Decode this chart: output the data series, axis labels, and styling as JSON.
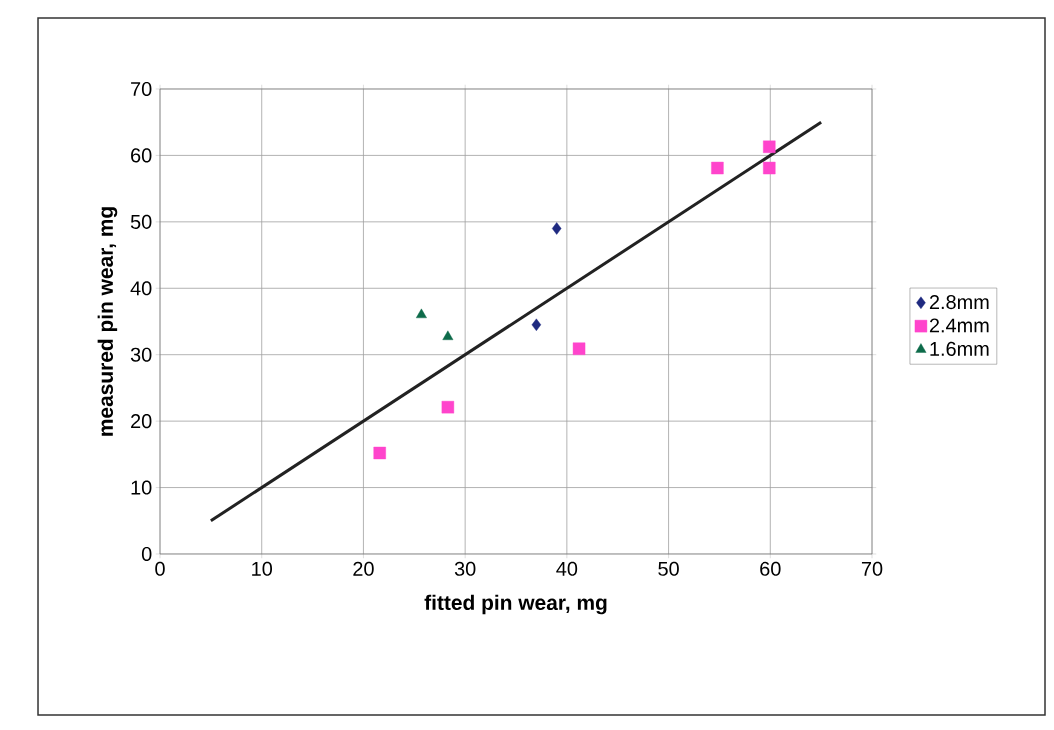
{
  "chart_data": {
    "type": "scatter",
    "xlabel": "fitted pin wear, mg",
    "ylabel": "measured pin wear, mg",
    "xlim": [
      0,
      70
    ],
    "ylim": [
      0,
      70
    ],
    "xticks": [
      0,
      10,
      20,
      30,
      40,
      50,
      60,
      70
    ],
    "yticks": [
      0,
      10,
      20,
      30,
      40,
      50,
      60,
      70
    ],
    "grid": true,
    "legend": "right",
    "series": [
      {
        "name": "2.8mm",
        "color": "#1f2a80",
        "marker": "diamond",
        "x": [
          39,
          37
        ],
        "values": [
          49,
          34.5
        ]
      },
      {
        "name": "2.4mm",
        "color": "#ff44cc",
        "marker": "square",
        "x": [
          21.6,
          28.3,
          41.2,
          54.8,
          59.9,
          59.9
        ],
        "values": [
          15.2,
          22.1,
          30.9,
          58.1,
          61.3,
          58.1
        ]
      },
      {
        "name": "1.6mm",
        "color": "#0d6b4a",
        "marker": "triangle",
        "x": [
          25.7,
          28.3
        ],
        "values": [
          36,
          32.7
        ]
      },
      {
        "type": "line",
        "color": "#222222",
        "marker": "none",
        "x": [
          5,
          65
        ],
        "values": [
          5,
          65
        ]
      }
    ]
  }
}
